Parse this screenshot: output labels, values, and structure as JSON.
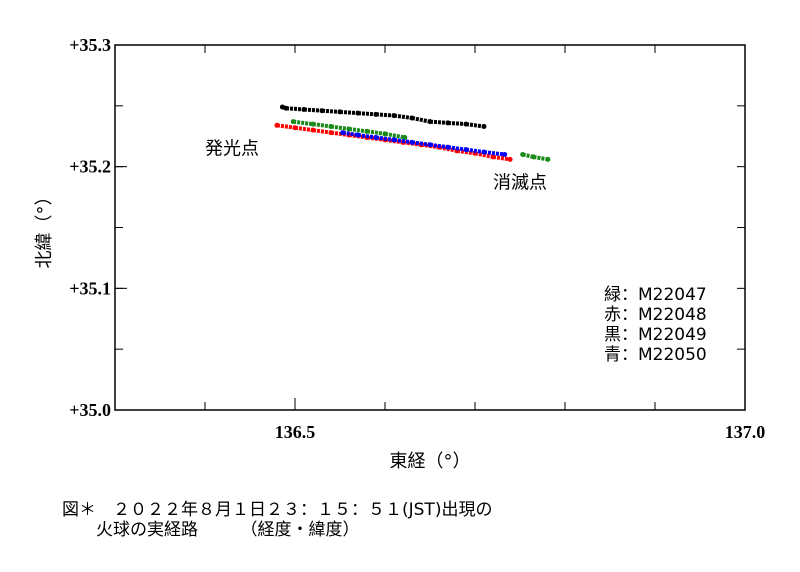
{
  "chart_data": {
    "type": "scatter",
    "xlabel": "東経（°）",
    "ylabel": "北緯（°）",
    "xlim": [
      136.3,
      137.0
    ],
    "ylim": [
      35.0,
      35.3
    ],
    "x_ticks": [
      {
        "value": 136.5,
        "label": "136.5"
      },
      {
        "value": 137.0,
        "label": "137.0"
      }
    ],
    "y_ticks": [
      {
        "value": 35.0,
        "label": "+35.0"
      },
      {
        "value": 35.1,
        "label": "+35.1"
      },
      {
        "value": 35.2,
        "label": "+35.2"
      },
      {
        "value": 35.3,
        "label": "+35.3"
      }
    ],
    "grid": false,
    "legend_position": "bottom-right",
    "annotations": [
      {
        "text": "発光点",
        "x": 136.43,
        "y": 35.21
      },
      {
        "text": "消滅点",
        "x": 136.75,
        "y": 35.182
      }
    ],
    "series": [
      {
        "name": "緑：M22047",
        "color": "#1a8a1a",
        "segments": [
          [
            [
              136.498,
              35.237
            ],
            [
              136.52,
              35.235
            ],
            [
              136.54,
              35.233
            ],
            [
              136.56,
              35.231
            ],
            [
              136.58,
              35.229
            ],
            [
              136.6,
              35.227
            ],
            [
              136.622,
              35.224
            ]
          ],
          [
            [
              136.753,
              35.21
            ],
            [
              136.765,
              35.208
            ],
            [
              136.781,
              35.206
            ]
          ]
        ]
      },
      {
        "name": "赤：M22048",
        "color": "#ff0000",
        "segments": [
          [
            [
              136.48,
              35.234
            ],
            [
              136.5,
              35.232
            ],
            [
              136.52,
              35.23
            ],
            [
              136.54,
              35.228
            ],
            [
              136.56,
              35.226
            ],
            [
              136.58,
              35.224
            ],
            [
              136.6,
              35.222
            ],
            [
              136.62,
              35.22
            ],
            [
              136.64,
              35.218
            ],
            [
              136.66,
              35.216
            ],
            [
              136.68,
              35.213
            ],
            [
              136.7,
              35.211
            ],
            [
              136.72,
              35.208
            ],
            [
              136.739,
              35.206
            ]
          ]
        ]
      },
      {
        "name": "黒：M22049",
        "color": "#000000",
        "segments": [
          [
            [
              136.486,
              35.249
            ],
            [
              136.49,
              35.248
            ],
            [
              136.51,
              35.247
            ],
            [
              136.53,
              35.246
            ],
            [
              136.55,
              35.245
            ],
            [
              136.57,
              35.244
            ],
            [
              136.59,
              35.243
            ],
            [
              136.61,
              35.242
            ],
            [
              136.63,
              35.24
            ],
            [
              136.65,
              35.237
            ],
            [
              136.67,
              35.236
            ],
            [
              136.69,
              35.235
            ],
            [
              136.71,
              35.233
            ]
          ]
        ]
      },
      {
        "name": "青：M22050",
        "color": "#0000ff",
        "segments": [
          [
            [
              136.553,
              35.228
            ],
            [
              136.57,
              35.226
            ],
            [
              136.59,
              35.224
            ],
            [
              136.61,
              35.222
            ],
            [
              136.63,
              35.22
            ],
            [
              136.65,
              35.218
            ],
            [
              136.67,
              35.216
            ],
            [
              136.69,
              35.214
            ],
            [
              136.71,
              35.212
            ],
            [
              136.733,
              35.21
            ]
          ]
        ]
      }
    ]
  },
  "caption": {
    "line1": "図＊　２０２２年８月１日２３：１５：５１(JST)出現の",
    "line2": "　　火球の実経路　　　（経度・緯度）"
  }
}
